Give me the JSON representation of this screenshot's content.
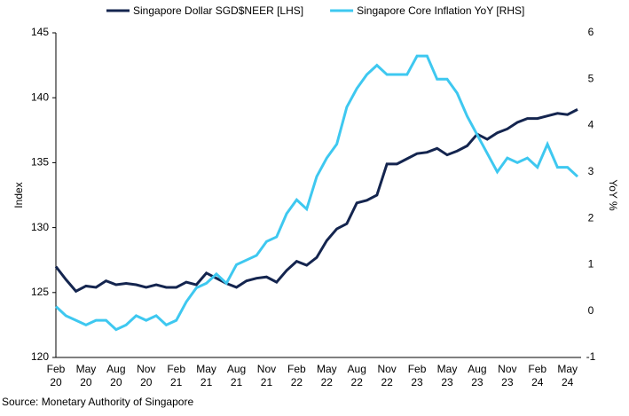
{
  "chart_data": {
    "type": "line",
    "categories": [
      "Feb 20",
      null,
      null,
      "May 20",
      null,
      null,
      "Aug 20",
      null,
      null,
      "Nov 20",
      null,
      null,
      "Feb 21",
      null,
      null,
      "May 21",
      null,
      null,
      "Aug 21",
      null,
      null,
      "Nov 21",
      null,
      null,
      "Feb 22",
      null,
      null,
      "May 22",
      null,
      null,
      "Aug 22",
      null,
      null,
      "Nov 22",
      null,
      null,
      "Feb 23",
      null,
      null,
      "May 23",
      null,
      null,
      "Aug 23",
      null,
      null,
      "Nov 23",
      null,
      null,
      "Feb 24",
      null,
      null,
      "May 24",
      null
    ],
    "series": [
      {
        "name": "Singapore Dollar SGD$NEER [LHS]",
        "color": "#14254f",
        "axis": "y",
        "values": [
          127.0,
          126.0,
          125.1,
          125.5,
          125.4,
          125.9,
          125.6,
          125.7,
          125.6,
          125.4,
          125.6,
          125.4,
          125.4,
          125.8,
          125.6,
          126.5,
          126.1,
          125.7,
          125.4,
          125.9,
          126.1,
          126.2,
          125.8,
          126.7,
          127.4,
          127.1,
          127.7,
          129.0,
          129.9,
          130.3,
          131.9,
          132.1,
          132.5,
          134.9,
          134.9,
          135.3,
          135.7,
          135.8,
          136.1,
          135.6,
          135.9,
          136.3,
          137.2,
          136.8,
          137.3,
          137.6,
          138.1,
          138.4,
          138.4,
          138.6,
          138.8,
          138.7,
          139.1
        ]
      },
      {
        "name": "Singapore Core Inflation YoY [RHS]",
        "color": "#3ec8f0",
        "axis": "y2",
        "values": [
          0.1,
          -0.1,
          -0.2,
          -0.3,
          -0.2,
          -0.2,
          -0.4,
          -0.3,
          -0.1,
          -0.2,
          -0.1,
          -0.3,
          -0.2,
          0.2,
          0.5,
          0.6,
          0.8,
          0.6,
          1.0,
          1.1,
          1.2,
          1.5,
          1.6,
          2.1,
          2.4,
          2.2,
          2.9,
          3.3,
          3.6,
          4.4,
          4.8,
          5.1,
          5.3,
          5.1,
          5.1,
          5.1,
          5.5,
          5.5,
          5.0,
          5.0,
          4.7,
          4.2,
          3.8,
          3.4,
          3.0,
          3.3,
          3.2,
          3.3,
          3.1,
          3.6,
          3.1,
          3.1,
          2.9
        ]
      }
    ],
    "ylabel": "Index",
    "y2label": "YoY %",
    "ylim": [
      120,
      145
    ],
    "yticks": [
      120,
      125,
      130,
      135,
      140,
      145
    ],
    "y2lim": [
      -1,
      6
    ],
    "y2ticks": [
      -1,
      0,
      1,
      2,
      3,
      4,
      5,
      6
    ],
    "legend": "top",
    "source": "Source: Monetary Authority of Singapore"
  }
}
